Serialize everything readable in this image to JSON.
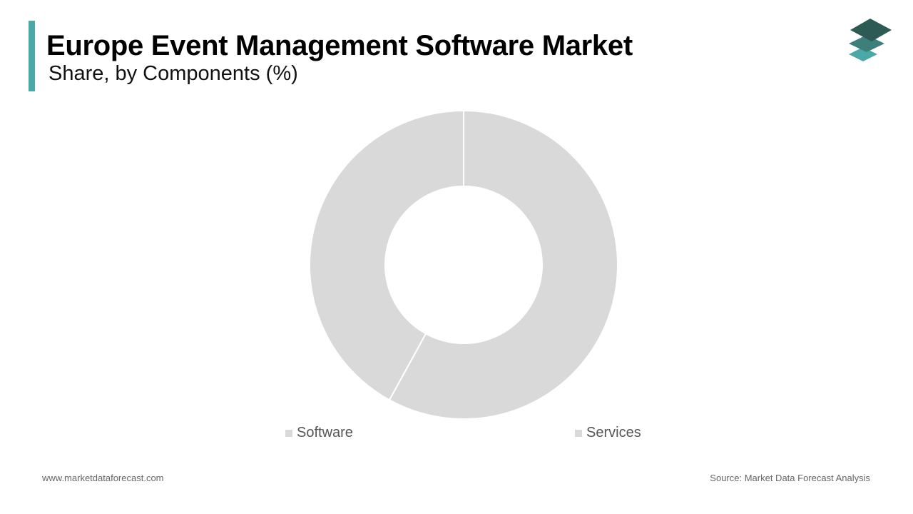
{
  "header": {
    "title": "Europe Event Management Software Market",
    "subtitle": "Share, by Components (%)"
  },
  "brand": {
    "logo_icon": "stacked-layers-logo-icon",
    "accent_color": "#4aa9a6"
  },
  "chart_data": {
    "type": "pie",
    "variant": "donut",
    "title": "Share, by Components (%)",
    "categories": [
      "Software",
      "Services"
    ],
    "values": [
      42,
      58
    ],
    "colors": [
      "#d9d9d9",
      "#d9d9d9"
    ],
    "legend_placement": "bottom",
    "data_labels": false
  },
  "footer": {
    "website": "www.marketdataforecast.com",
    "source": "Source: Market Data Forecast Analysis"
  }
}
